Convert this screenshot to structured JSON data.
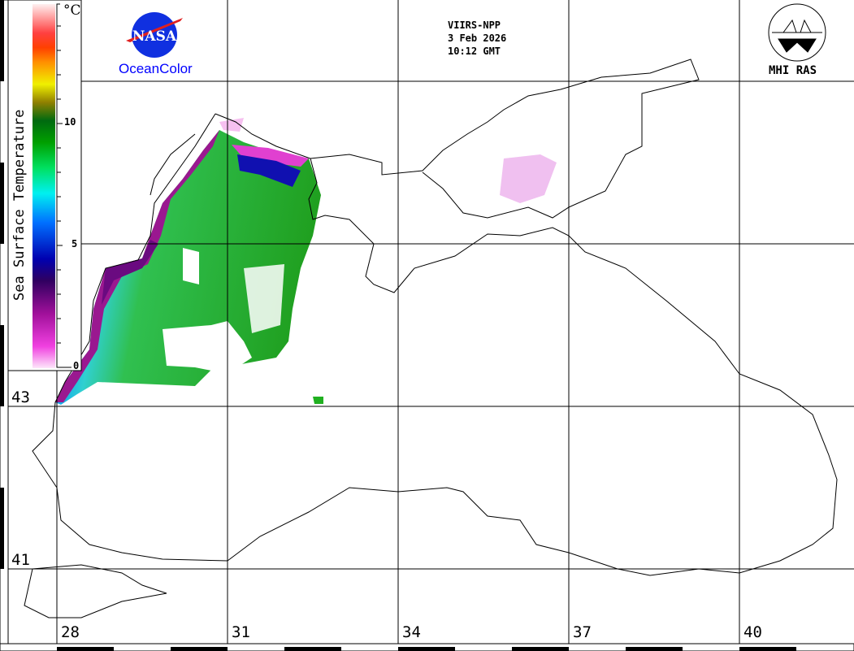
{
  "header": {
    "sensor": "VIIRS-NPP",
    "date": "3 Feb 2026",
    "time": "10:12 GMT",
    "left_logo_text": "NASA",
    "left_logo_caption": "OceanColor",
    "right_logo_text": "MHI RAS"
  },
  "colorbar": {
    "title": "Sea Surface Temperature",
    "unit": "°C",
    "ticks": [
      "0",
      "5",
      "10"
    ],
    "tick_values": [
      0,
      5,
      10
    ],
    "range": [
      0,
      15
    ]
  },
  "axes": {
    "lat_labels": [
      "43",
      "41"
    ],
    "lon_labels": [
      "28",
      "31",
      "34",
      "37",
      "40"
    ]
  },
  "colors": {
    "coast": "#000000",
    "grid": "#000000",
    "caption": "#0000ff"
  }
}
